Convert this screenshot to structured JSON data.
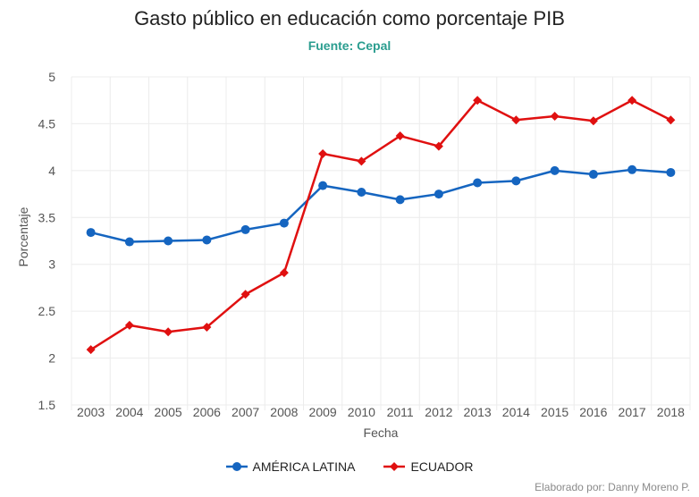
{
  "chart_data": {
    "type": "line",
    "title": "Gasto público en educación como porcentaje PIB",
    "subtitle": "Fuente: Cepal",
    "xlabel": "Fecha",
    "ylabel": "Porcentaje",
    "categories": [
      "2003",
      "2004",
      "2005",
      "2006",
      "2007",
      "2008",
      "2009",
      "2010",
      "2011",
      "2012",
      "2013",
      "2014",
      "2015",
      "2016",
      "2017",
      "2018"
    ],
    "ylim": [
      1.5,
      5
    ],
    "yticks": [
      "1.5",
      "2",
      "2.5",
      "3",
      "3.5",
      "4",
      "4.5",
      "5"
    ],
    "grid": true,
    "legend_position": "bottom",
    "series": [
      {
        "name": "AMÉRICA LATINA",
        "color": "#1565c0",
        "marker": "circle",
        "values": [
          3.34,
          3.24,
          3.25,
          3.26,
          3.37,
          3.44,
          3.84,
          3.77,
          3.69,
          3.75,
          3.87,
          3.89,
          4.0,
          3.96,
          4.01,
          3.98
        ]
      },
      {
        "name": "ECUADOR",
        "color": "#e01010",
        "marker": "diamond",
        "values": [
          2.09,
          2.35,
          2.28,
          2.33,
          2.68,
          2.91,
          4.18,
          4.1,
          4.37,
          4.26,
          4.75,
          4.54,
          4.58,
          4.53,
          4.75,
          4.54
        ]
      }
    ]
  },
  "credit": "Elaborado por: Danny Moreno P."
}
